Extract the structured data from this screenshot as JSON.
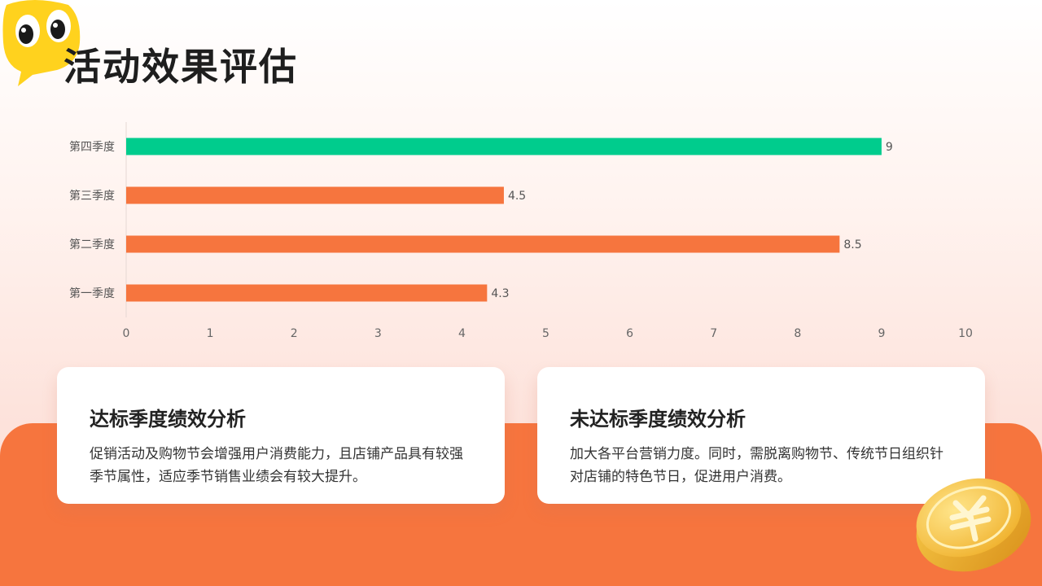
{
  "header": {
    "title": "活动效果评估"
  },
  "chart_data": {
    "type": "bar",
    "orientation": "horizontal",
    "categories": [
      "第四季度",
      "第三季度",
      "第二季度",
      "第一季度"
    ],
    "values": [
      9,
      4.5,
      8.5,
      4.3
    ],
    "value_labels": [
      "9",
      "4.5",
      "8.5",
      "4.3"
    ],
    "bar_colors": [
      "#00cc8d",
      "#f6753e",
      "#f6753e",
      "#f6753e"
    ],
    "xlim": [
      0,
      10
    ],
    "x_ticks": [
      "0",
      "1",
      "2",
      "3",
      "4",
      "5",
      "6",
      "7",
      "8",
      "9",
      "10"
    ],
    "title": "",
    "xlabel": "",
    "ylabel": "",
    "grid": false,
    "legend": "none"
  },
  "cards": [
    {
      "title": "达标季度绩效分析",
      "body": "促销活动及购物节会增强用户消费能力，且店铺产品具有较强季节属性，适应季节销售业绩会有较大提升。"
    },
    {
      "title": "未达标季度绩效分析",
      "body": "加大各平台营销力度。同时，需脱离购物节、传统节日组织针对店铺的特色节日，促进用户消费。"
    }
  ],
  "colors": {
    "accent": "#f6753e",
    "highlight": "#00cc8d",
    "title": "#1e1e1e"
  },
  "decorations": {
    "mascot": "cartoon-eyes-mascot",
    "coin": "gold-coin"
  }
}
